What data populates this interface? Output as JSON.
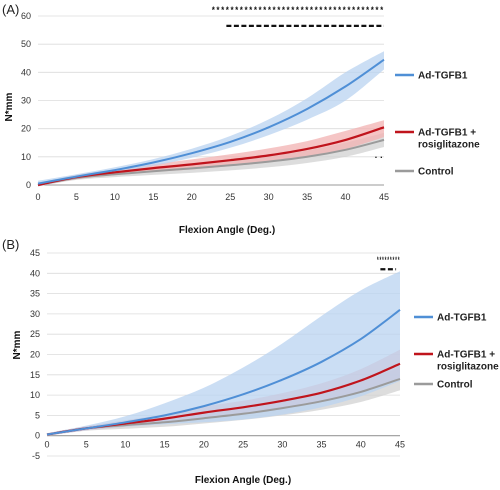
{
  "figure": {
    "panel_labels": [
      "(A)",
      "(B)"
    ]
  },
  "chart_data": [
    {
      "type": "line",
      "panel": "(A)",
      "xlabel": "Flexion Angle (Deg.)",
      "ylabel": "N*mm",
      "xlim": [
        0,
        45
      ],
      "ylim": [
        0,
        60
      ],
      "x_ticks": [
        "0",
        "5",
        "10",
        "15",
        "20",
        "25",
        "30",
        "35",
        "40",
        "45"
      ],
      "y_ticks": [
        "0",
        "10",
        "20",
        "30",
        "40",
        "50",
        "60"
      ],
      "x": [
        0,
        5,
        10,
        15,
        20,
        25,
        30,
        35,
        40,
        45
      ],
      "grid": true,
      "legend_position": "right",
      "series": [
        {
          "name": "Ad-TGFB1",
          "color": "#4f8fd6",
          "band_color": "#b9d3f0",
          "values": [
            0.5,
            3,
            5.3,
            8,
            11.3,
            15.3,
            20.5,
            27,
            35,
            44.5
          ],
          "lower": [
            -0.5,
            2.2,
            4.3,
            6.8,
            9.7,
            13.2,
            17.7,
            23.2,
            30,
            41
          ],
          "upper": [
            1.5,
            3.8,
            6.3,
            9.2,
            12.9,
            17.4,
            23.3,
            30.8,
            40,
            47.5
          ]
        },
        {
          "name": "Ad-TGFB1 + rosiglitazone",
          "color": "#c0141c",
          "band_color": "#f2b1b1",
          "values": [
            0,
            2.8,
            4.5,
            6,
            7.3,
            8.8,
            10.5,
            12.8,
            16,
            20.5
          ],
          "lower": [
            -0.5,
            2,
            3.5,
            4.6,
            5.5,
            6.7,
            8,
            10,
            12.8,
            17
          ],
          "upper": [
            0.5,
            3.6,
            5.5,
            7.4,
            9.1,
            10.9,
            13,
            15.6,
            19.2,
            23
          ]
        },
        {
          "name": "Control",
          "color": "#9b9b9b",
          "band_color": "#d2d2d2",
          "values": [
            0,
            2.5,
            3.8,
            4.9,
            5.9,
            7,
            8.3,
            10,
            12.5,
            16
          ],
          "lower": [
            -0.5,
            1.8,
            2.8,
            3.6,
            4.3,
            5.2,
            6.3,
            7.8,
            10,
            13.5
          ],
          "upper": [
            0.5,
            3.2,
            4.8,
            6.2,
            7.5,
            8.8,
            10.3,
            12.2,
            15,
            18.5
          ]
        }
      ],
      "annotations": {
        "stars": "*************************************",
        "stars_range": [
          22.5,
          45
        ],
        "dash_range": [
          24.5,
          45
        ],
        "dash_y": 56.5,
        "small_marker": "..",
        "small_marker_x": 44.3,
        "small_marker_y": 9.5
      }
    },
    {
      "type": "line",
      "panel": "(B)",
      "xlabel": "Flexion Angle (Deg.)",
      "ylabel": "N*mm",
      "xlim": [
        0,
        45
      ],
      "ylim": [
        -5,
        45
      ],
      "x_ticks": [
        "0",
        "5",
        "10",
        "15",
        "20",
        "25",
        "30",
        "35",
        "40",
        "45"
      ],
      "y_ticks": [
        "-5",
        "0",
        "5",
        "10",
        "15",
        "20",
        "25",
        "30",
        "35",
        "40",
        "45"
      ],
      "x": [
        0,
        5,
        10,
        15,
        20,
        25,
        30,
        35,
        40,
        45
      ],
      "grid": true,
      "legend_position": "right",
      "series": [
        {
          "name": "Ad-TGFB1",
          "color": "#4f8fd6",
          "band_color": "#b9d3f0",
          "values": [
            0.3,
            1.8,
            3.3,
            5,
            7.3,
            10.2,
            13.8,
            18.2,
            23.8,
            31
          ],
          "lower": [
            0,
            1.3,
            2.2,
            2.8,
            3.3,
            4,
            5.2,
            7,
            9.7,
            13.5
          ],
          "upper": [
            0.6,
            2.5,
            4.8,
            8,
            11.8,
            16.8,
            22.7,
            29.5,
            35.8,
            40.5
          ]
        },
        {
          "name": "Ad-TGFB1 + rosiglitazone",
          "color": "#c0141c",
          "band_color": "#f2b1b1",
          "values": [
            0.3,
            1.8,
            3,
            4.2,
            5.7,
            7,
            8.6,
            10.6,
            13.6,
            17.7
          ],
          "lower": [
            0,
            1.3,
            2.2,
            3.1,
            4.2,
            5.4,
            6.7,
            8.3,
            10.8,
            14.2
          ],
          "upper": [
            0.6,
            2.3,
            3.8,
            5.3,
            7.2,
            8.6,
            10.5,
            12.9,
            16.4,
            21.2
          ]
        },
        {
          "name": "Control",
          "color": "#9b9b9b",
          "band_color": "#d2d2d2",
          "values": [
            0.3,
            1.8,
            2.6,
            3.3,
            4.3,
            5.4,
            6.8,
            8.5,
            10.8,
            14
          ],
          "lower": [
            0,
            1.2,
            1.7,
            2.2,
            3,
            3.9,
            5,
            6.4,
            8.3,
            11.2
          ],
          "upper": [
            0.6,
            2.3,
            3.5,
            4.5,
            5.7,
            7,
            8.6,
            10.6,
            13.3,
            16.8
          ]
        }
      ],
      "annotations": {
        "stars": "*********",
        "stars_range": [
          42,
          45
        ],
        "dash_range": [
          42.5,
          44.5
        ],
        "dash_y": 41,
        "small_marker": "",
        "small_marker_x": 0,
        "small_marker_y": 0
      }
    }
  ]
}
